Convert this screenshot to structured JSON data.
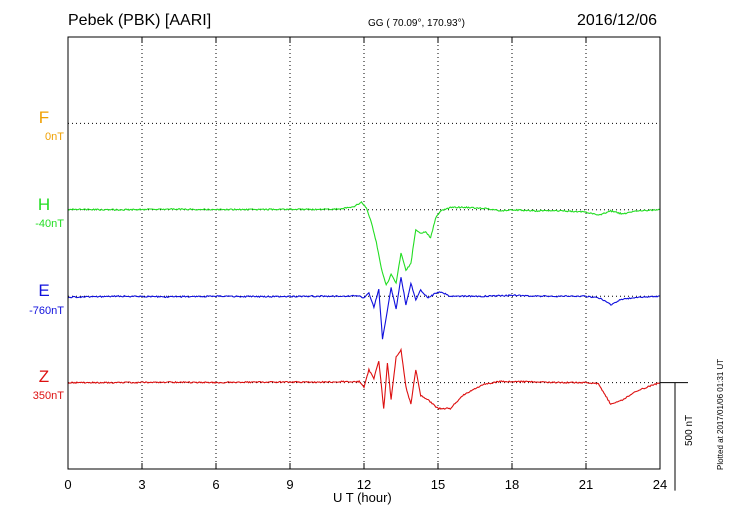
{
  "header": {
    "station": "Pebek (PBK)  [AARI]",
    "coords": "GG ( 70.09°, 170.93°)",
    "date": "2016/12/06"
  },
  "chart_data": {
    "type": "line",
    "title": "Pebek (PBK)  [AARI]",
    "xlabel": "U T (hour)",
    "xlim": [
      0,
      24
    ],
    "xticks": [
      0,
      3,
      6,
      9,
      12,
      15,
      18,
      21,
      24
    ],
    "tick_labels": [
      "0",
      "3",
      "6",
      "9",
      "12",
      "15",
      "18",
      "21",
      "24"
    ],
    "grid": true,
    "ylim_nT": [
      -2000,
      0
    ],
    "components": [
      {
        "name": "F",
        "baseline_label": "0nT",
        "color": "#f0a000",
        "offset_nT": -400,
        "x": [],
        "values": []
      },
      {
        "name": "H",
        "baseline_label": "-40nT",
        "color": "#22dd22",
        "offset_nT": -800,
        "x": [
          0,
          2,
          4,
          6,
          8,
          10,
          11,
          11.6,
          11.9,
          12.1,
          12.3,
          12.5,
          12.7,
          12.9,
          13.1,
          13.3,
          13.5,
          13.7,
          13.9,
          14.1,
          14.3,
          14.5,
          14.7,
          14.9,
          15.1,
          15.5,
          16,
          17,
          17.5,
          18,
          19,
          20,
          21,
          21.5,
          22,
          22.5,
          23,
          24
        ],
        "values": [
          2,
          0,
          3,
          1,
          2,
          2,
          4,
          15,
          35,
          10,
          -60,
          -150,
          -270,
          -350,
          -300,
          -340,
          -200,
          -280,
          -250,
          -90,
          -110,
          -100,
          -130,
          -40,
          -5,
          10,
          12,
          5,
          -5,
          0,
          -5,
          -5,
          -10,
          -25,
          -5,
          -20,
          -5,
          0
        ]
      },
      {
        "name": "E",
        "baseline_label": "-760nT",
        "color": "#1010dd",
        "offset_nT": -1200,
        "x": [
          0,
          2,
          4,
          6,
          8,
          10,
          11,
          11.8,
          12.0,
          12.2,
          12.4,
          12.6,
          12.75,
          12.9,
          13.1,
          13.3,
          13.5,
          13.7,
          13.9,
          14.1,
          14.3,
          14.6,
          14.9,
          15.1,
          15.5,
          16,
          17,
          18,
          19,
          20,
          21,
          21.6,
          22,
          22.4,
          23,
          24
        ],
        "values": [
          -5,
          0,
          -3,
          0,
          -2,
          0,
          0,
          2,
          -10,
          15,
          -50,
          30,
          -200,
          -100,
          40,
          -60,
          90,
          -40,
          60,
          -20,
          30,
          -10,
          15,
          20,
          0,
          0,
          0,
          5,
          0,
          0,
          0,
          -10,
          -40,
          -15,
          -5,
          0
        ]
      },
      {
        "name": "Z",
        "baseline_label": "350nT",
        "color": "#dd1010",
        "offset_nT": -1600,
        "x": [
          0,
          2,
          4,
          6,
          8,
          10,
          11,
          11.8,
          12.0,
          12.2,
          12.4,
          12.6,
          12.8,
          12.95,
          13.1,
          13.3,
          13.5,
          13.7,
          13.9,
          14.1,
          14.3,
          14.6,
          15.0,
          15.5,
          16,
          16.8,
          17.5,
          18,
          19,
          20,
          21,
          21.5,
          22,
          22.5,
          23,
          24
        ],
        "values": [
          0,
          0,
          2,
          0,
          3,
          2,
          4,
          5,
          -20,
          60,
          20,
          100,
          -120,
          90,
          -80,
          120,
          150,
          -20,
          -100,
          60,
          -60,
          -80,
          -120,
          -120,
          -60,
          -10,
          5,
          5,
          3,
          0,
          0,
          -5,
          -100,
          -80,
          -40,
          0
        ]
      }
    ],
    "scale_label": "500 nT",
    "scale_nT": 500,
    "plotted": "Plotted at 2017/01/06 01:31  UT"
  }
}
